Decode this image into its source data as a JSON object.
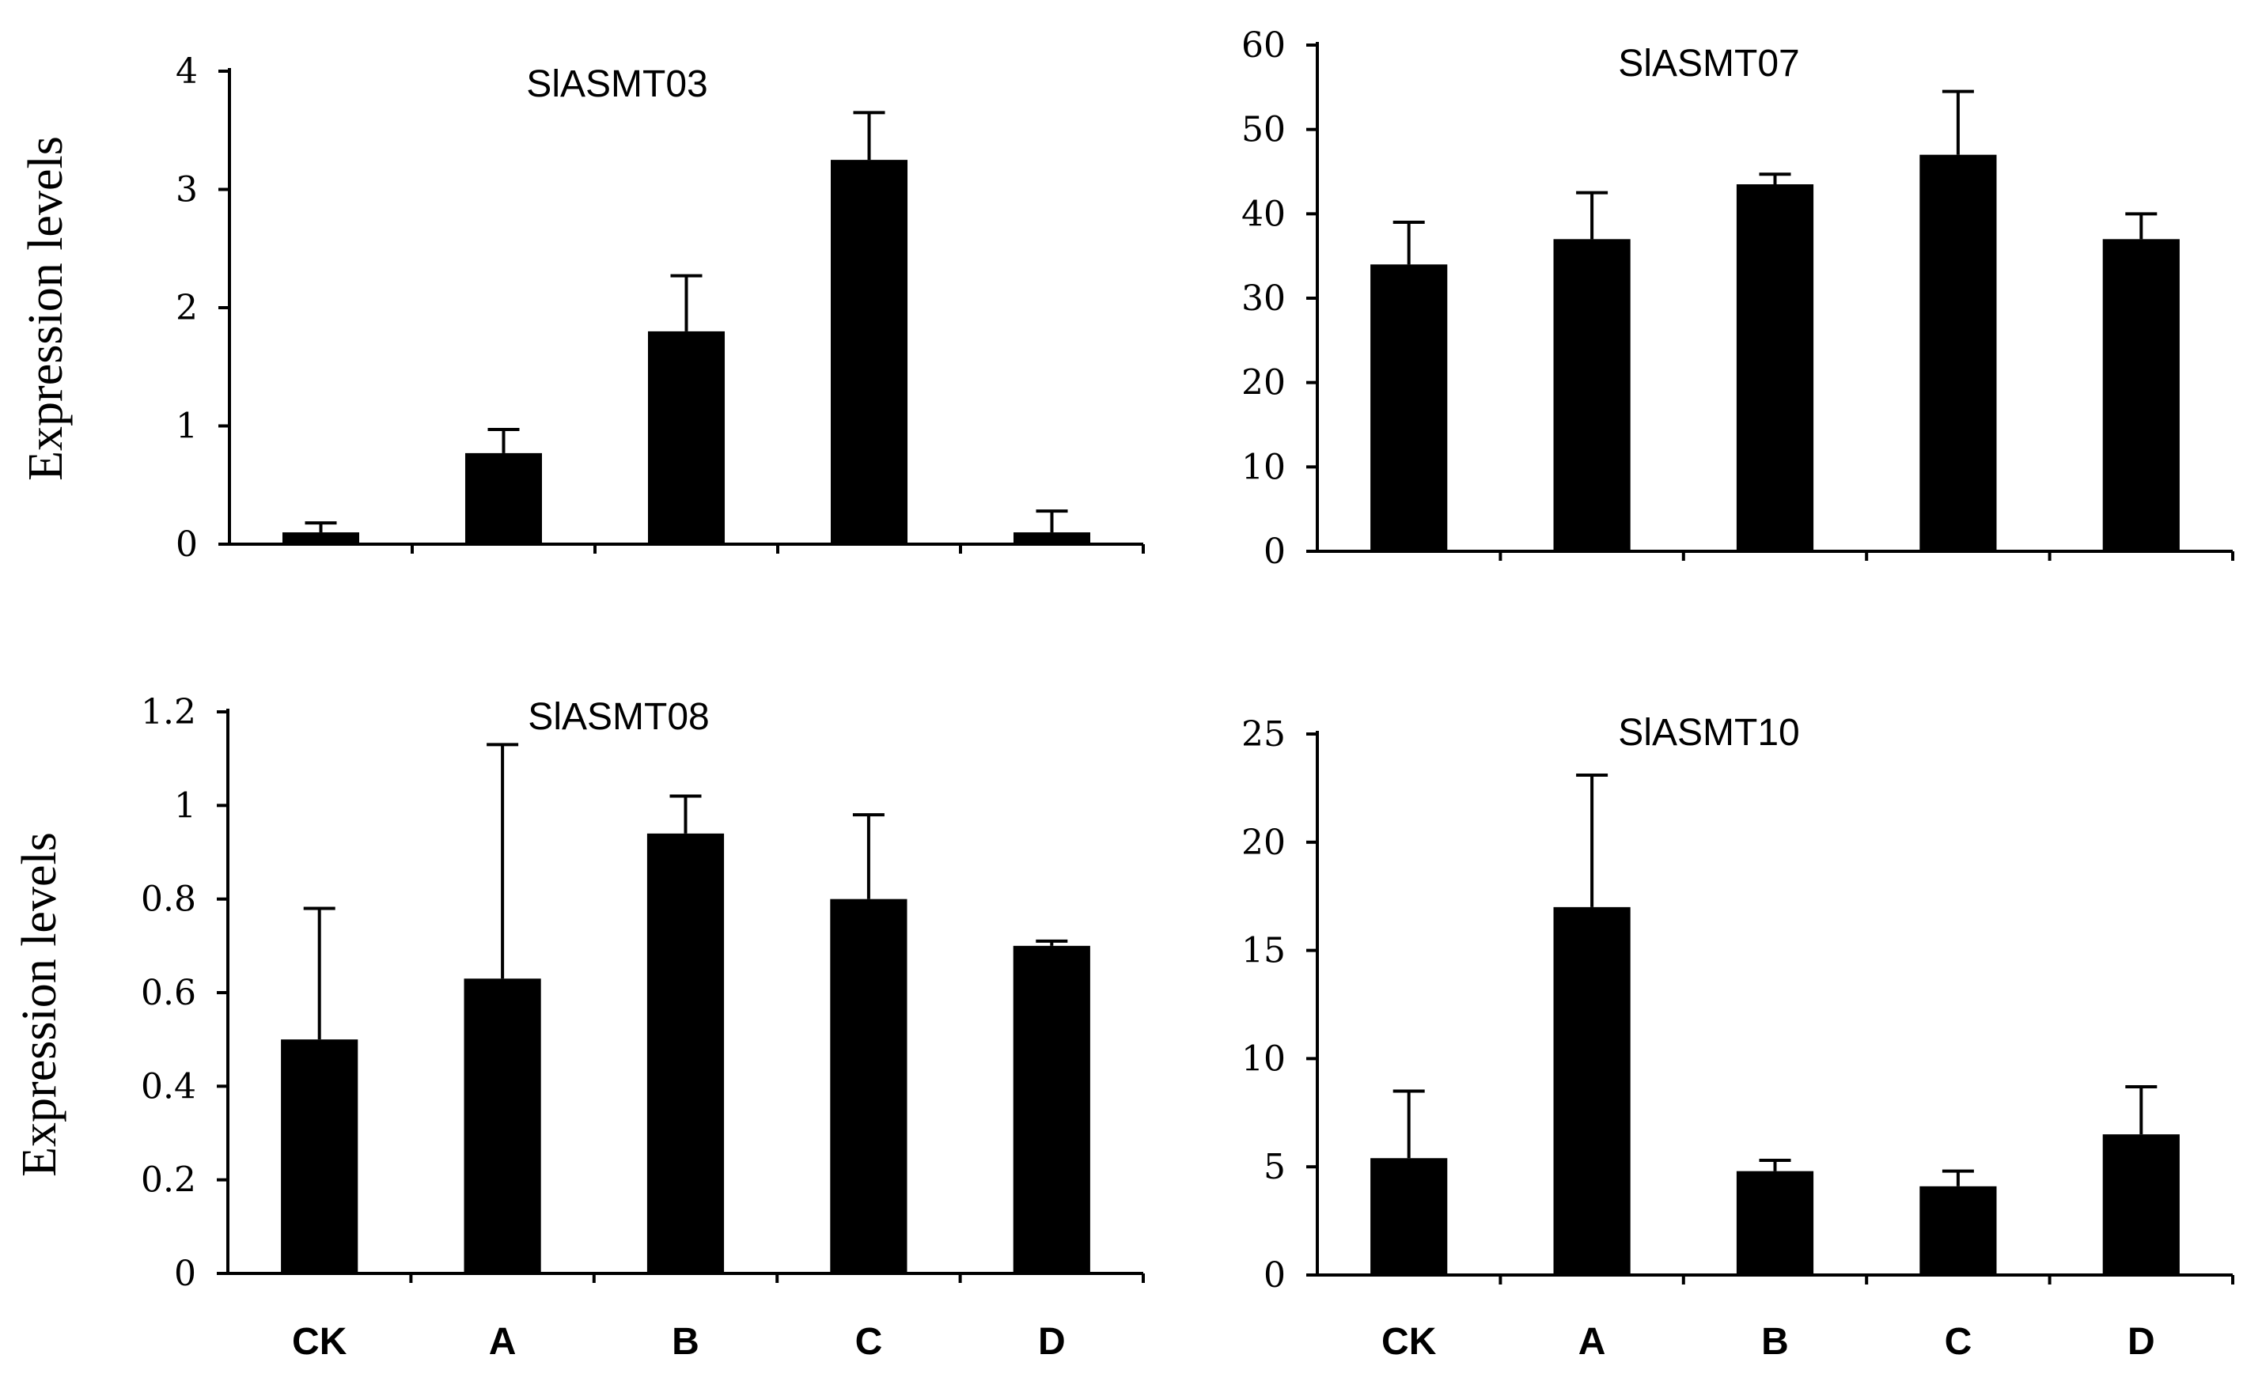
{
  "chart_data": [
    {
      "type": "bar",
      "title": "SlASMT03",
      "ylabel": "Expression levels",
      "xlabel": "",
      "categories": [
        "CK",
        "A",
        "B",
        "C",
        "D"
      ],
      "values": [
        0.1,
        0.77,
        1.8,
        3.25,
        0.1
      ],
      "errors": [
        0.08,
        0.2,
        0.47,
        0.4,
        0.18
      ],
      "ylim": [
        0,
        4
      ],
      "yticks": [
        "0",
        "1",
        "2",
        "3",
        "4"
      ],
      "show_category_labels": false
    },
    {
      "type": "bar",
      "title": "SlASMT07",
      "ylabel": "",
      "xlabel": "",
      "categories": [
        "CK",
        "A",
        "B",
        "C",
        "D"
      ],
      "values": [
        34,
        37,
        43.5,
        47,
        37
      ],
      "errors": [
        5,
        5.5,
        1.2,
        7.5,
        3
      ],
      "ylim": [
        0,
        60
      ],
      "yticks": [
        "0",
        "10",
        "20",
        "30",
        "40",
        "50",
        "60"
      ],
      "show_category_labels": false
    },
    {
      "type": "bar",
      "title": "SlASMT08",
      "ylabel": "Expression levels",
      "xlabel": "",
      "categories": [
        "CK",
        "A",
        "B",
        "C",
        "D"
      ],
      "values": [
        0.5,
        0.63,
        0.94,
        0.8,
        0.7
      ],
      "errors": [
        0.28,
        0.5,
        0.08,
        0.18,
        0.01
      ],
      "ylim": [
        0,
        1.2
      ],
      "yticks": [
        "0",
        "0.2",
        "0.4",
        "0.6",
        "0.8",
        "1",
        "1.2"
      ],
      "show_category_labels": true
    },
    {
      "type": "bar",
      "title": "SlASMT10",
      "ylabel": "",
      "xlabel": "",
      "categories": [
        "CK",
        "A",
        "B",
        "C",
        "D"
      ],
      "values": [
        5.4,
        17,
        4.8,
        4.1,
        6.5
      ],
      "errors": [
        3.1,
        6.1,
        0.5,
        0.7,
        2.2
      ],
      "ylim": [
        0,
        25
      ],
      "yticks": [
        "0",
        "5",
        "10",
        "15",
        "20",
        "25"
      ],
      "show_category_labels": true
    }
  ]
}
